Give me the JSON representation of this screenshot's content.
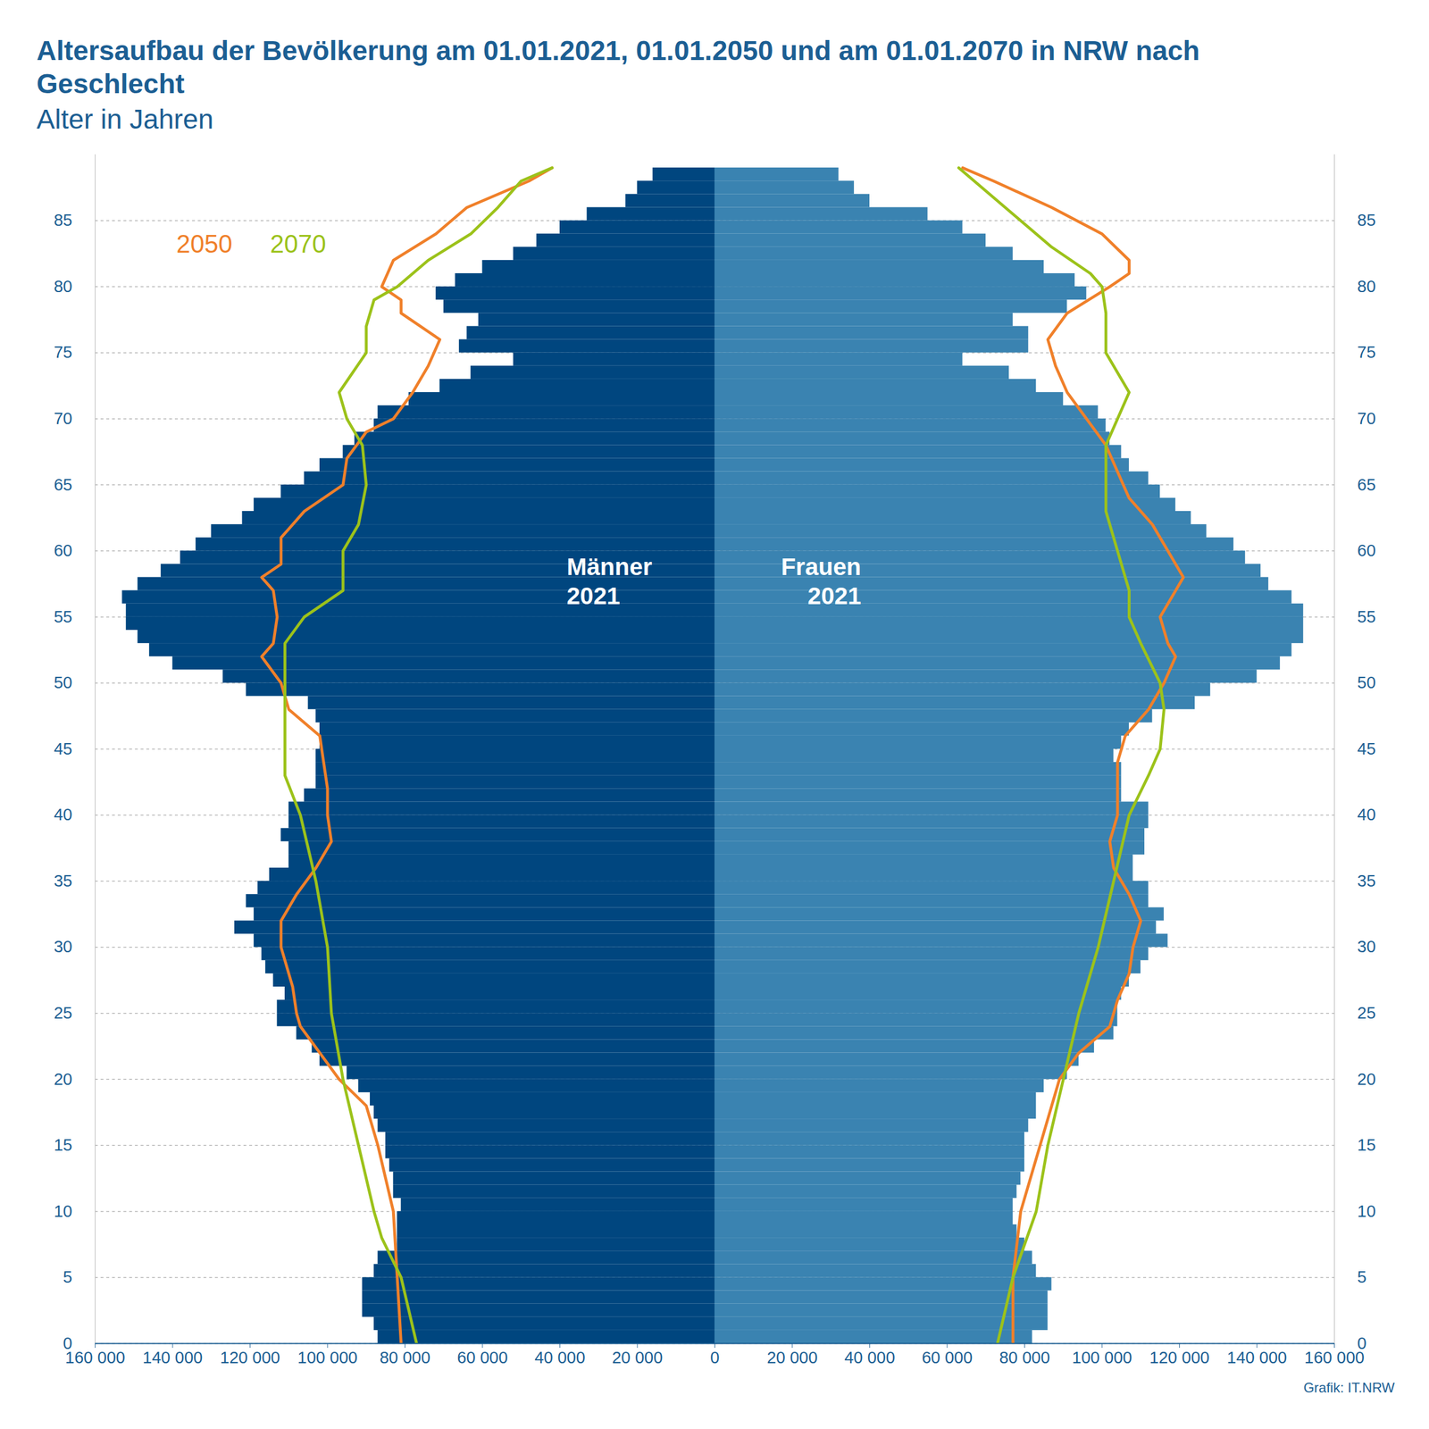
{
  "chart_data": {
    "type": "pyramid",
    "title": "Altersaufbau der Bevölkerung am 01.01.2021, 01.01.2050 und am 01.01.2070 in NRW nach Geschlecht",
    "subtitle": "Alter in Jahren",
    "caption": "Grafik: IT.NRW",
    "ages": [
      0,
      1,
      2,
      3,
      4,
      5,
      6,
      7,
      8,
      9,
      10,
      11,
      12,
      13,
      14,
      15,
      16,
      17,
      18,
      19,
      20,
      21,
      22,
      23,
      24,
      25,
      26,
      27,
      28,
      29,
      30,
      31,
      32,
      33,
      34,
      35,
      36,
      37,
      38,
      39,
      40,
      41,
      42,
      43,
      44,
      45,
      46,
      47,
      48,
      49,
      50,
      51,
      52,
      53,
      54,
      55,
      56,
      57,
      58,
      59,
      60,
      61,
      62,
      63,
      64,
      65,
      66,
      67,
      68,
      69,
      70,
      71,
      72,
      73,
      74,
      75,
      76,
      77,
      78,
      79,
      80,
      81,
      82,
      83,
      84,
      85,
      86,
      87,
      88
    ],
    "men": {
      "label": [
        "Männer",
        "2021"
      ],
      "color": "#00467f",
      "type": "bar",
      "values": [
        87000,
        88000,
        91000,
        91000,
        91000,
        88000,
        87000,
        82000,
        82000,
        82000,
        81000,
        83000,
        83000,
        84000,
        85000,
        85000,
        87000,
        88000,
        89000,
        92000,
        95000,
        102000,
        104000,
        108000,
        113000,
        113000,
        111000,
        114000,
        116000,
        117000,
        119000,
        124000,
        119000,
        121000,
        118000,
        115000,
        110000,
        110000,
        112000,
        110000,
        110000,
        106000,
        103000,
        103000,
        103000,
        102000,
        102000,
        103000,
        105000,
        121000,
        127000,
        140000,
        146000,
        149000,
        152000,
        152000,
        153000,
        149000,
        143000,
        138000,
        134000,
        130000,
        122000,
        119000,
        112000,
        106000,
        102000,
        96000,
        93000,
        88000,
        87000,
        79000,
        71000,
        63000,
        52000,
        66000,
        64000,
        61000,
        70000,
        72000,
        67000,
        60000,
        52000,
        46000,
        40000,
        33000,
        23000,
        20000,
        16000
      ]
    },
    "women": {
      "label": [
        "Frauen",
        "2021"
      ],
      "color": "#3a83b1",
      "type": "bar",
      "values": [
        82000,
        86000,
        86000,
        86000,
        87000,
        83000,
        82000,
        80000,
        78000,
        77000,
        77000,
        78000,
        79000,
        80000,
        80000,
        80000,
        81000,
        83000,
        83000,
        85000,
        91000,
        94000,
        98000,
        103000,
        104000,
        104000,
        105000,
        107000,
        110000,
        112000,
        117000,
        114000,
        116000,
        112000,
        112000,
        108000,
        108000,
        111000,
        111000,
        112000,
        112000,
        105000,
        105000,
        105000,
        103000,
        105000,
        107000,
        113000,
        124000,
        128000,
        140000,
        146000,
        149000,
        152000,
        152000,
        152000,
        149000,
        143000,
        141000,
        137000,
        134000,
        127000,
        123000,
        119000,
        115000,
        112000,
        107000,
        105000,
        102000,
        101000,
        99000,
        90000,
        83000,
        76000,
        64000,
        81000,
        81000,
        77000,
        91000,
        96000,
        93000,
        85000,
        77000,
        70000,
        64000,
        55000,
        40000,
        36000,
        32000
      ]
    },
    "series": [
      {
        "name": "2050",
        "type": "line",
        "color": "#f0802a",
        "men": {
          "ages": [
            0,
            5,
            10,
            15,
            18,
            20,
            22,
            24,
            25,
            27,
            30,
            32,
            34,
            36,
            38,
            40,
            42,
            44,
            46,
            48,
            50,
            52,
            53,
            55,
            57,
            58,
            59,
            61,
            63,
            65,
            67,
            69,
            70,
            72,
            74,
            76,
            78,
            79,
            80,
            82,
            84,
            86,
            88,
            89
          ],
          "values": [
            81000,
            82000,
            83000,
            87000,
            90000,
            97000,
            102000,
            107000,
            108000,
            109000,
            112000,
            112000,
            108000,
            103000,
            99000,
            100000,
            100000,
            101000,
            102000,
            110000,
            112000,
            117000,
            114000,
            113000,
            114000,
            117000,
            112000,
            112000,
            106000,
            96000,
            95000,
            90000,
            83000,
            78000,
            74000,
            71000,
            81000,
            81000,
            86000,
            83000,
            72000,
            64000,
            48000,
            42000
          ]
        },
        "women": {
          "ages": [
            0,
            5,
            10,
            15,
            18,
            20,
            22,
            24,
            26,
            28,
            30,
            32,
            34,
            36,
            38,
            40,
            42,
            44,
            46,
            48,
            50,
            52,
            53,
            55,
            57,
            58,
            60,
            62,
            64,
            66,
            68,
            70,
            72,
            74,
            76,
            78,
            80,
            81,
            82,
            84,
            86,
            88,
            89
          ],
          "values": [
            77000,
            77000,
            79000,
            84000,
            87000,
            89000,
            94000,
            102000,
            104000,
            107000,
            108000,
            110000,
            107000,
            103000,
            102000,
            104000,
            104000,
            104000,
            106000,
            112000,
            116000,
            119000,
            117000,
            115000,
            119000,
            121000,
            117000,
            113000,
            107000,
            104000,
            101000,
            96000,
            91000,
            88000,
            86000,
            91000,
            102000,
            107000,
            107000,
            100000,
            87000,
            72000,
            64000
          ]
        }
      },
      {
        "name": "2070",
        "type": "line",
        "color": "#9cc21a",
        "men": {
          "ages": [
            0,
            5,
            8,
            10,
            15,
            20,
            25,
            30,
            35,
            40,
            43,
            45,
            48,
            50,
            53,
            55,
            57,
            60,
            62,
            65,
            68,
            70,
            72,
            75,
            77,
            79,
            80,
            82,
            84,
            86,
            88,
            89
          ],
          "values": [
            77000,
            81000,
            86000,
            88000,
            92000,
            96000,
            99000,
            100000,
            103000,
            107000,
            111000,
            111000,
            111000,
            111000,
            111000,
            106000,
            96000,
            96000,
            92000,
            90000,
            91000,
            95000,
            97000,
            90000,
            90000,
            88000,
            82000,
            74000,
            63000,
            56000,
            50000,
            42000
          ]
        },
        "women": {
          "ages": [
            0,
            5,
            10,
            15,
            20,
            25,
            30,
            35,
            40,
            43,
            45,
            48,
            50,
            53,
            55,
            57,
            60,
            63,
            65,
            68,
            70,
            72,
            75,
            78,
            80,
            81,
            83,
            85,
            87,
            89
          ],
          "values": [
            73000,
            77000,
            83000,
            86000,
            90000,
            94000,
            99000,
            103000,
            107000,
            112000,
            115000,
            116000,
            115000,
            110000,
            107000,
            107000,
            104000,
            101000,
            101000,
            101000,
            104000,
            107000,
            101000,
            101000,
            100000,
            97000,
            87000,
            79000,
            71000,
            63000
          ]
        }
      }
    ],
    "xlim": [
      0,
      160000
    ],
    "xticks": [
      0,
      {
        "value": 20000,
        "label": "20 000"
      },
      {
        "value": 40000,
        "label": "40 000"
      },
      {
        "value": 60000,
        "label": "60 000"
      },
      {
        "value": 80000,
        "label": "80 000"
      },
      {
        "value": 100000,
        "label": "100 000"
      },
      {
        "value": 120000,
        "label": "120 000"
      },
      {
        "value": 140000,
        "label": "140 000"
      },
      {
        "value": 160000,
        "label": "160 000"
      }
    ],
    "ylim": [
      0,
      90
    ],
    "yticks": [
      0,
      5,
      10,
      15,
      20,
      25,
      30,
      35,
      40,
      45,
      50,
      55,
      60,
      65,
      70,
      75,
      80,
      85
    ],
    "grid": true
  }
}
